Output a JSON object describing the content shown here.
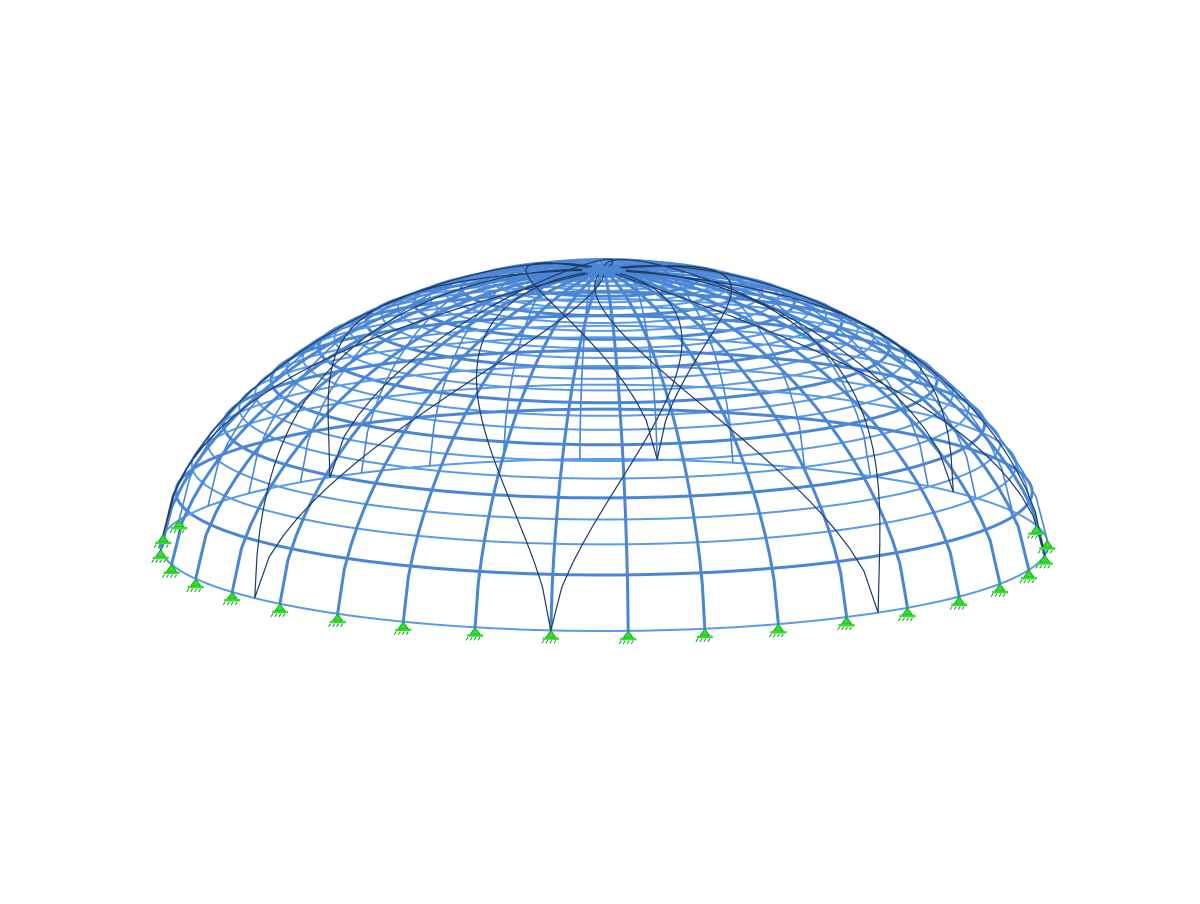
{
  "model": {
    "type": "dome-frame",
    "view": "3d-isometric",
    "colors": {
      "background": "#ffffff",
      "member": "#4a86d4",
      "member_light": "#5b9be6",
      "diagonal": "#1e3a66",
      "support": "#2fe02f",
      "support_dark": "#1a9a1a"
    },
    "meridians": 36,
    "rings": 28,
    "supports_visible": 22
  }
}
